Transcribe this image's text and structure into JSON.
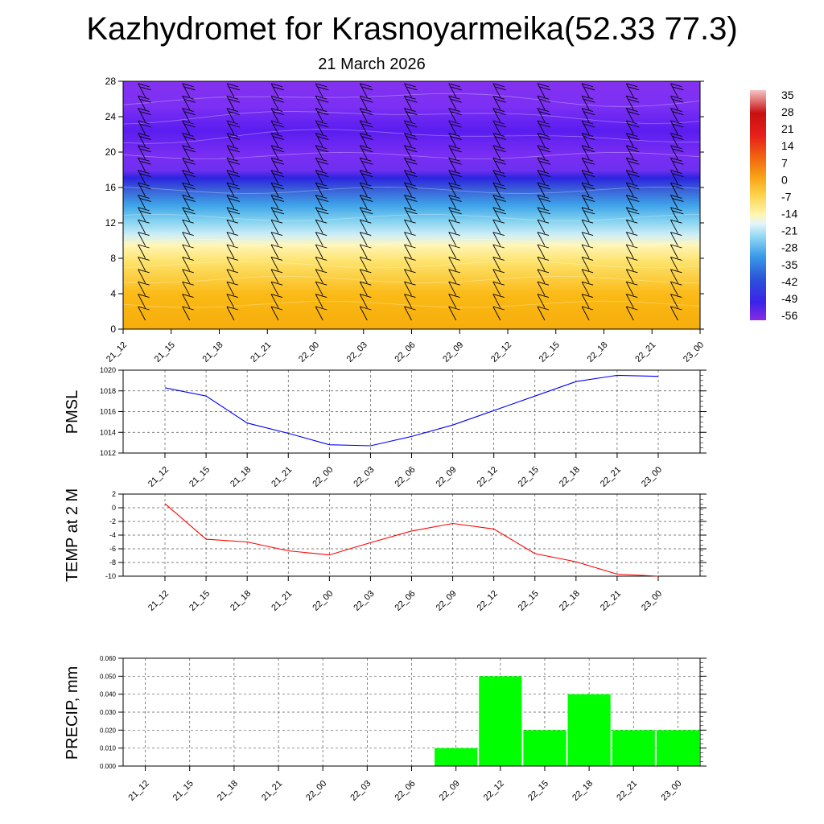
{
  "title": "Kazhydromet for Krasnoyarmeika(52.33 77.3)",
  "subtitle": "21 March 2026",
  "colors": {
    "pmsl_line": "#0000ff",
    "temp_line": "#ff0000",
    "precip_bar": "#00ff00",
    "grid": "#555555"
  },
  "chart_data": [
    {
      "type": "heatmap",
      "name": "upper-air-cross-section",
      "x": [
        "21_12",
        "21_15",
        "21_18",
        "21_21",
        "22_00",
        "22_03",
        "22_06",
        "22_09",
        "22_12",
        "22_15",
        "22_18",
        "22_21",
        "23_00"
      ],
      "yticks": [
        "0",
        "4",
        "8",
        "12",
        "16",
        "20",
        "24",
        "28"
      ],
      "ylim": [
        0,
        28
      ],
      "colorbar": {
        "labels": [
          "35",
          "28",
          "21",
          "14",
          "7",
          "0",
          "-7",
          "-14",
          "-21",
          "-28",
          "-35",
          "-42",
          "-49",
          "-56"
        ],
        "range": [
          -60,
          40
        ]
      },
      "description_units": "temperature, degC; wind barbs overlaid"
    },
    {
      "type": "line",
      "name": "pmsl",
      "ylabel": "PMSL",
      "x": [
        "21_12",
        "21_15",
        "21_18",
        "21_21",
        "22_00",
        "22_03",
        "22_06",
        "22_09",
        "22_12",
        "22_15",
        "22_18",
        "22_21",
        "23_00"
      ],
      "values": [
        1018.3,
        1017.5,
        1014.9,
        1013.9,
        1012.8,
        1012.7,
        1013.6,
        1014.7,
        1016.1,
        1017.5,
        1018.9,
        1019.5,
        1019.4
      ],
      "ylim": [
        1012,
        1020
      ],
      "yticks": [
        "1012",
        "1014",
        "1016",
        "1018",
        "1020"
      ],
      "grid": true
    },
    {
      "type": "line",
      "name": "temp-2m",
      "ylabel": "TEMP at 2 M",
      "x": [
        "21_12",
        "21_15",
        "21_18",
        "21_21",
        "22_00",
        "22_03",
        "22_06",
        "22_09",
        "22_12",
        "22_15",
        "22_18",
        "22_21",
        "23_00"
      ],
      "values": [
        0.6,
        -4.6,
        -5.0,
        -6.3,
        -6.9,
        -5.1,
        -3.4,
        -2.3,
        -3.1,
        -6.7,
        -7.9,
        -9.7,
        -10.0
      ],
      "ylim": [
        -10,
        2
      ],
      "yticks": [
        "-10",
        "-8",
        "-6",
        "-4",
        "-2",
        "0",
        "2"
      ],
      "grid": true
    },
    {
      "type": "bar",
      "name": "precip",
      "ylabel": "PRECIP, mm",
      "x": [
        "21_12",
        "21_15",
        "21_18",
        "21_21",
        "22_00",
        "22_03",
        "22_06",
        "22_09",
        "22_12",
        "22_15",
        "22_18",
        "22_21",
        "23_00"
      ],
      "values": [
        0,
        0,
        0,
        0,
        0,
        0,
        0,
        0.01,
        0.05,
        0.02,
        0.04,
        0.02,
        0.02
      ],
      "ylim": [
        0,
        0.06
      ],
      "yticks": [
        "0.000",
        "0.010",
        "0.020",
        "0.030",
        "0.040",
        "0.050",
        "0.060"
      ],
      "grid": true
    }
  ]
}
